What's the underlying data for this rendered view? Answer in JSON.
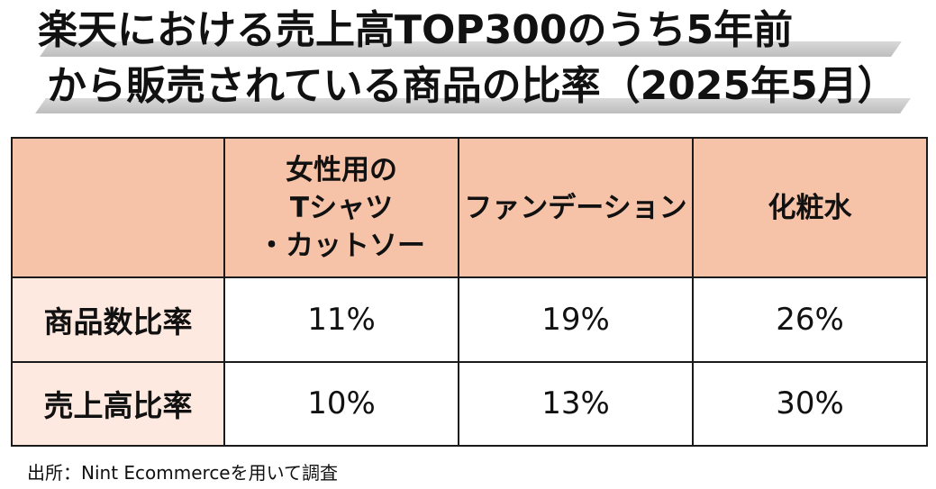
{
  "chart_data": {
    "type": "table",
    "title_lines": [
      "楽天における売上高TOP300のうち5年前",
      "から販売されている商品の比率（2025年5月）"
    ],
    "columns": [
      [
        "女性用の",
        "Tシャツ",
        "・カットソー"
      ],
      [
        "ファンデーション"
      ],
      [
        "化粧水"
      ]
    ],
    "rows": [
      {
        "label": "商品数比率",
        "values": [
          "11%",
          "19%",
          "26%"
        ]
      },
      {
        "label": "売上高比率",
        "values": [
          "10%",
          "13%",
          "30%"
        ]
      }
    ],
    "source": "出所：Nint Ecommerceを用いて調査"
  }
}
